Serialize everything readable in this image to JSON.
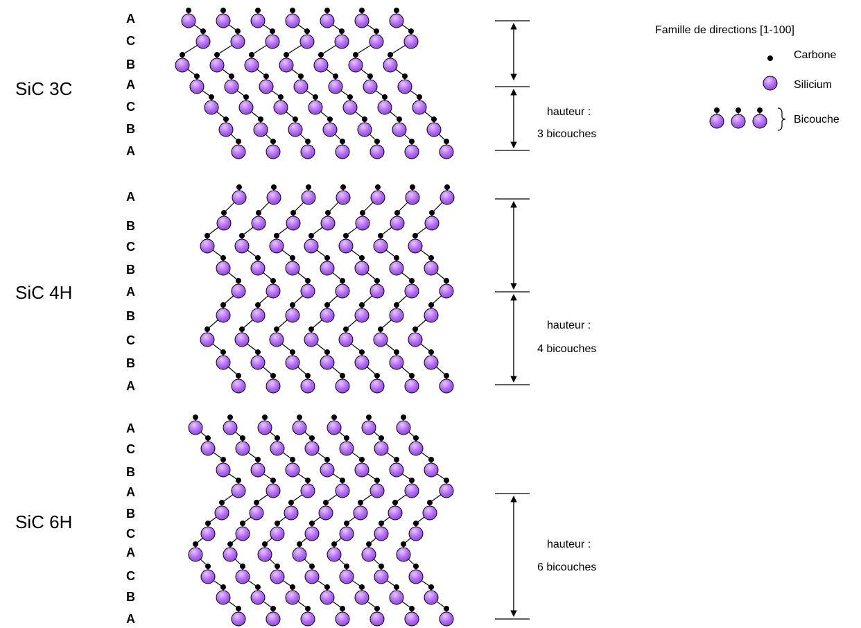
{
  "legend": {
    "title": "Famille de directions [1-100]",
    "carbon_label": "Carbone",
    "silicon_label": "Silicium",
    "bilayer_label": "Bicouche"
  },
  "colors": {
    "silicon_top": "#e6c8ff",
    "silicon_mid": "#b46cf2",
    "silicon_bottom": "#8a3fe0",
    "carbon": "#000000",
    "lines": "#000000"
  },
  "polytypes": [
    {
      "name": "SiC 3C",
      "stacking": [
        "A",
        "C",
        "B",
        "A",
        "C",
        "B",
        "A"
      ],
      "height_line1": "hauteur :",
      "height_line2": "3 bicouches"
    },
    {
      "name": "SiC 4H",
      "stacking": [
        "A",
        "B",
        "C",
        "B",
        "A",
        "B",
        "C",
        "B",
        "A"
      ],
      "height_line1": "hauteur :",
      "height_line2": "4 bicouches"
    },
    {
      "name": "SiC 6H",
      "stacking": [
        "A",
        "C",
        "B",
        "A",
        "B",
        "C",
        "A",
        "C",
        "B",
        "A"
      ],
      "height_line1": "hauteur :",
      "height_line2": "6 bicouches"
    }
  ]
}
